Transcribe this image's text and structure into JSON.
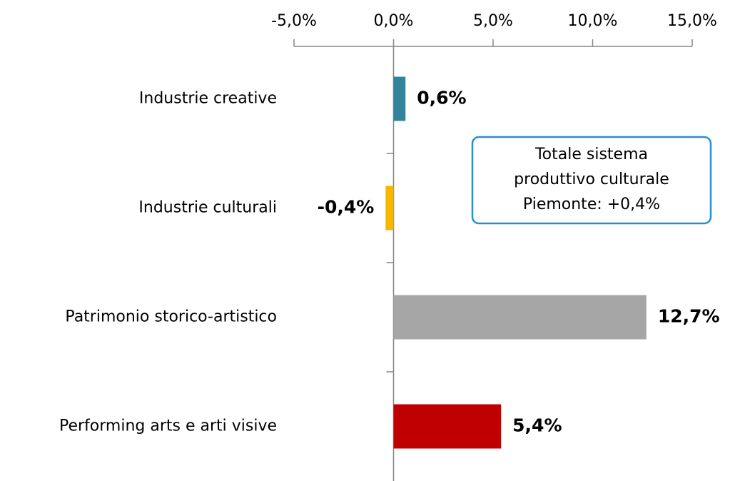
{
  "chart_data": {
    "type": "bar",
    "orientation": "horizontal",
    "categories": [
      "Industrie creative",
      "Industrie culturali",
      "Patrimonio storico-artistico",
      "Performing arts e arti visive"
    ],
    "values": [
      0.6,
      -0.4,
      12.7,
      5.4
    ],
    "value_labels": [
      "0,6%",
      "-0,4%",
      "12,7%",
      "5,4%"
    ],
    "colors": [
      "#31849b",
      "#f5b800",
      "#a6a6a6",
      "#c00000"
    ],
    "xlim": [
      -5,
      15
    ],
    "xticks": [
      {
        "value": -5,
        "label": "-5,0%"
      },
      {
        "value": 0,
        "label": "0,0%"
      },
      {
        "value": 5,
        "label": "5,0%"
      },
      {
        "value": 10,
        "label": "10,0%"
      },
      {
        "value": 15,
        "label": "15,0%"
      }
    ],
    "annotation": [
      "Totale sistema",
      "produttivo culturale",
      "Piemonte: +0,4%"
    ]
  }
}
